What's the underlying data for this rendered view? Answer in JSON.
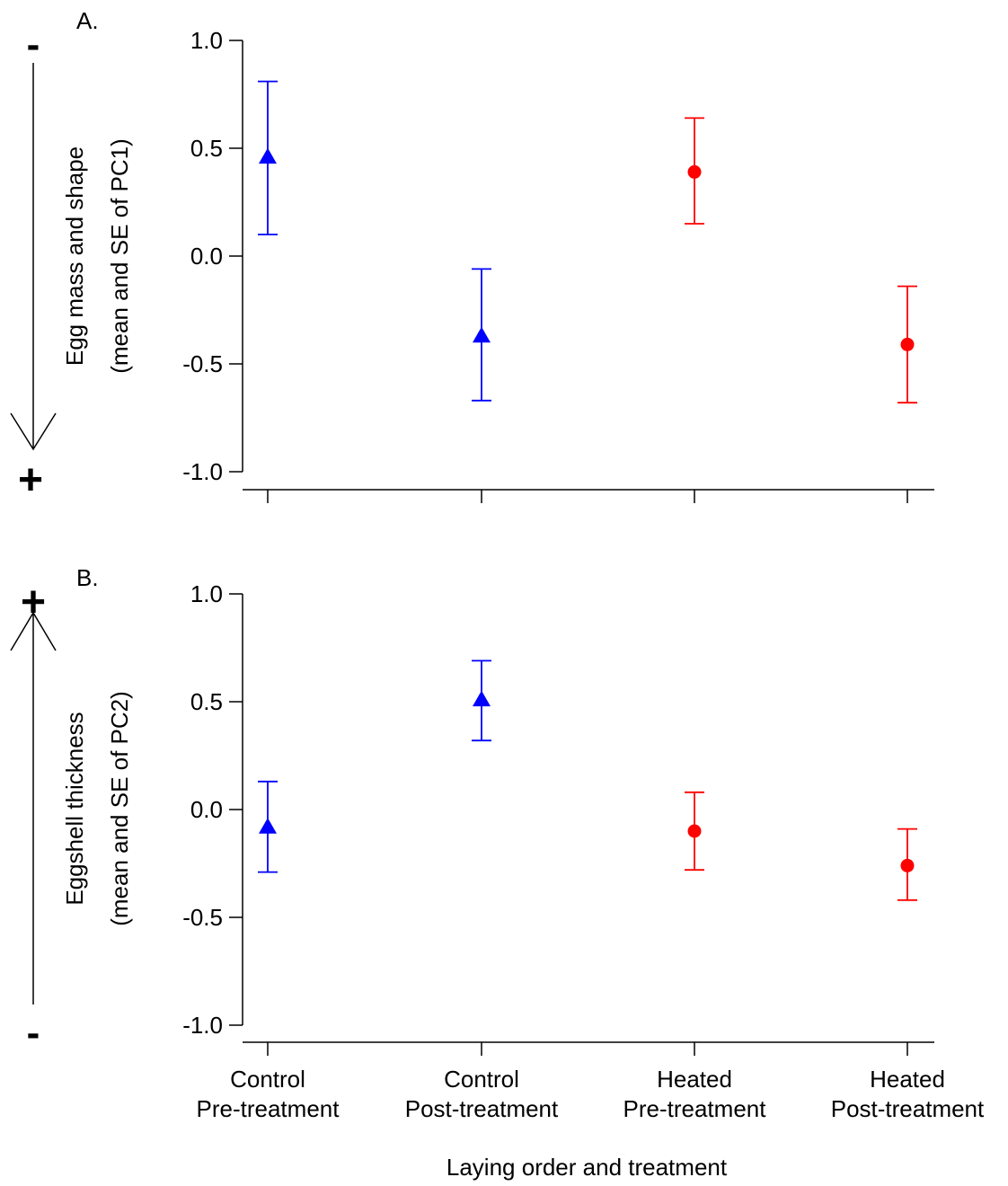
{
  "chart_data": [
    {
      "type": "scatter",
      "panel_label": "A.",
      "ylabel_line1": "Egg mass and shape",
      "ylabel_line2": "(mean and SE of PC1)",
      "arrow_top_sign": "-",
      "arrow_bottom_sign": "+",
      "ylim": [
        -1.0,
        1.0
      ],
      "yticks": [
        "1.0",
        "0.5",
        "0.0",
        "-0.5",
        "-1.0"
      ],
      "ytick_values": [
        1.0,
        0.5,
        0.0,
        -0.5,
        -1.0
      ],
      "points": [
        {
          "category": 0,
          "mean": 0.46,
          "lower": 0.1,
          "upper": 0.81,
          "marker": "triangle",
          "color": "#0000ff"
        },
        {
          "category": 1,
          "mean": -0.37,
          "lower": -0.67,
          "upper": -0.06,
          "marker": "triangle",
          "color": "#0000ff"
        },
        {
          "category": 2,
          "mean": 0.39,
          "lower": 0.15,
          "upper": 0.64,
          "marker": "circle",
          "color": "#ff0000"
        },
        {
          "category": 3,
          "mean": -0.41,
          "lower": -0.68,
          "upper": -0.14,
          "marker": "circle",
          "color": "#ff0000"
        }
      ]
    },
    {
      "type": "scatter",
      "panel_label": "B.",
      "ylabel_line1": "Eggshell thickness",
      "ylabel_line2": "(mean and SE of PC2)",
      "arrow_top_sign": "+",
      "arrow_bottom_sign": "-",
      "ylim": [
        -1.0,
        1.0
      ],
      "yticks": [
        "1.0",
        "0.5",
        "0.0",
        "-0.5",
        "-1.0"
      ],
      "ytick_values": [
        1.0,
        0.5,
        0.0,
        -0.5,
        -1.0
      ],
      "xlabel": "Laying order and treatment",
      "categories": [
        [
          "Control",
          "Pre-treatment"
        ],
        [
          "Control",
          "Post-treatment"
        ],
        [
          "Heated",
          "Pre-treatment"
        ],
        [
          "Heated",
          "Post-treatment"
        ]
      ],
      "points": [
        {
          "category": 0,
          "mean": -0.08,
          "lower": -0.29,
          "upper": 0.13,
          "marker": "triangle",
          "color": "#0000ff"
        },
        {
          "category": 1,
          "mean": 0.51,
          "lower": 0.32,
          "upper": 0.69,
          "marker": "triangle",
          "color": "#0000ff"
        },
        {
          "category": 2,
          "mean": -0.1,
          "lower": -0.28,
          "upper": 0.08,
          "marker": "circle",
          "color": "#ff0000"
        },
        {
          "category": 3,
          "mean": -0.26,
          "lower": -0.42,
          "upper": -0.09,
          "marker": "circle",
          "color": "#ff0000"
        }
      ]
    }
  ]
}
